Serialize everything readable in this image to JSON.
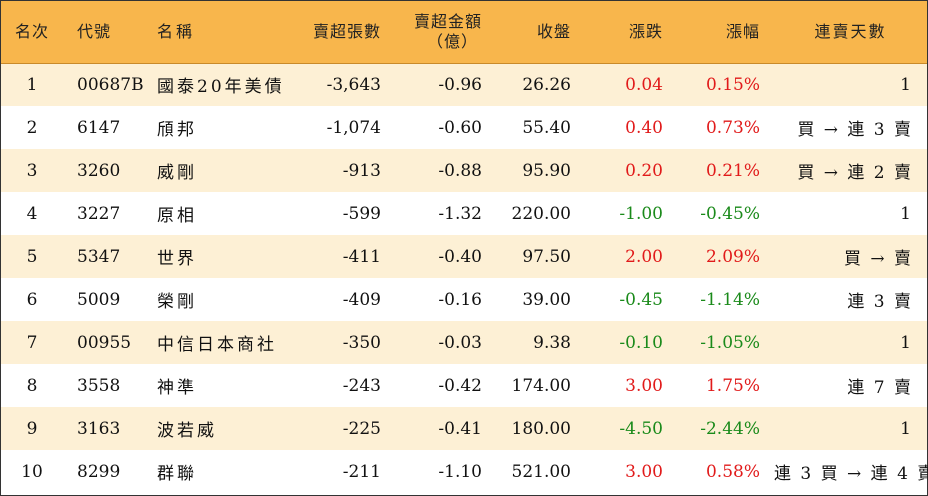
{
  "headers": {
    "rank": "名次",
    "code": "代號",
    "name": "名稱",
    "sell_lots": "賣超張數",
    "sell_amount_line1": "賣超金額",
    "sell_amount_line2": "（億）",
    "close": "收盤",
    "change": "漲跌",
    "change_pct": "漲幅",
    "days": "連賣天數"
  },
  "colors": {
    "header_bg": "#f8b64c",
    "row_stripe": "#fdf0d5",
    "up": "#e11a1a",
    "down": "#1a8a1a"
  },
  "rows": [
    {
      "rank": "1",
      "code": "00687B",
      "name": "國泰20年美債",
      "sell_lots": "-3,643",
      "sell_amount": "-0.96",
      "close": "26.26",
      "change": "0.04",
      "change_pct": "0.15%",
      "trend": "up",
      "days": "1"
    },
    {
      "rank": "2",
      "code": "6147",
      "name": "頎邦",
      "sell_lots": "-1,074",
      "sell_amount": "-0.60",
      "close": "55.40",
      "change": "0.40",
      "change_pct": "0.73%",
      "trend": "up",
      "days": "買 → 連 3 賣"
    },
    {
      "rank": "3",
      "code": "3260",
      "name": "威剛",
      "sell_lots": "-913",
      "sell_amount": "-0.88",
      "close": "95.90",
      "change": "0.20",
      "change_pct": "0.21%",
      "trend": "up",
      "days": "買 → 連 2 賣"
    },
    {
      "rank": "4",
      "code": "3227",
      "name": "原相",
      "sell_lots": "-599",
      "sell_amount": "-1.32",
      "close": "220.00",
      "change": "-1.00",
      "change_pct": "-0.45%",
      "trend": "down",
      "days": "1"
    },
    {
      "rank": "5",
      "code": "5347",
      "name": "世界",
      "sell_lots": "-411",
      "sell_amount": "-0.40",
      "close": "97.50",
      "change": "2.00",
      "change_pct": "2.09%",
      "trend": "up",
      "days": "買 → 賣"
    },
    {
      "rank": "6",
      "code": "5009",
      "name": "榮剛",
      "sell_lots": "-409",
      "sell_amount": "-0.16",
      "close": "39.00",
      "change": "-0.45",
      "change_pct": "-1.14%",
      "trend": "down",
      "days": "連 3 賣"
    },
    {
      "rank": "7",
      "code": "00955",
      "name": "中信日本商社",
      "sell_lots": "-350",
      "sell_amount": "-0.03",
      "close": "9.38",
      "change": "-0.10",
      "change_pct": "-1.05%",
      "trend": "down",
      "days": "1"
    },
    {
      "rank": "8",
      "code": "3558",
      "name": "神準",
      "sell_lots": "-243",
      "sell_amount": "-0.42",
      "close": "174.00",
      "change": "3.00",
      "change_pct": "1.75%",
      "trend": "up",
      "days": "連 7 賣"
    },
    {
      "rank": "9",
      "code": "3163",
      "name": "波若威",
      "sell_lots": "-225",
      "sell_amount": "-0.41",
      "close": "180.00",
      "change": "-4.50",
      "change_pct": "-2.44%",
      "trend": "down",
      "days": "1"
    },
    {
      "rank": "10",
      "code": "8299",
      "name": "群聯",
      "sell_lots": "-211",
      "sell_amount": "-1.10",
      "close": "521.00",
      "change": "3.00",
      "change_pct": "0.58%",
      "trend": "up",
      "days": "連 3 買 → 連 4 賣"
    }
  ]
}
